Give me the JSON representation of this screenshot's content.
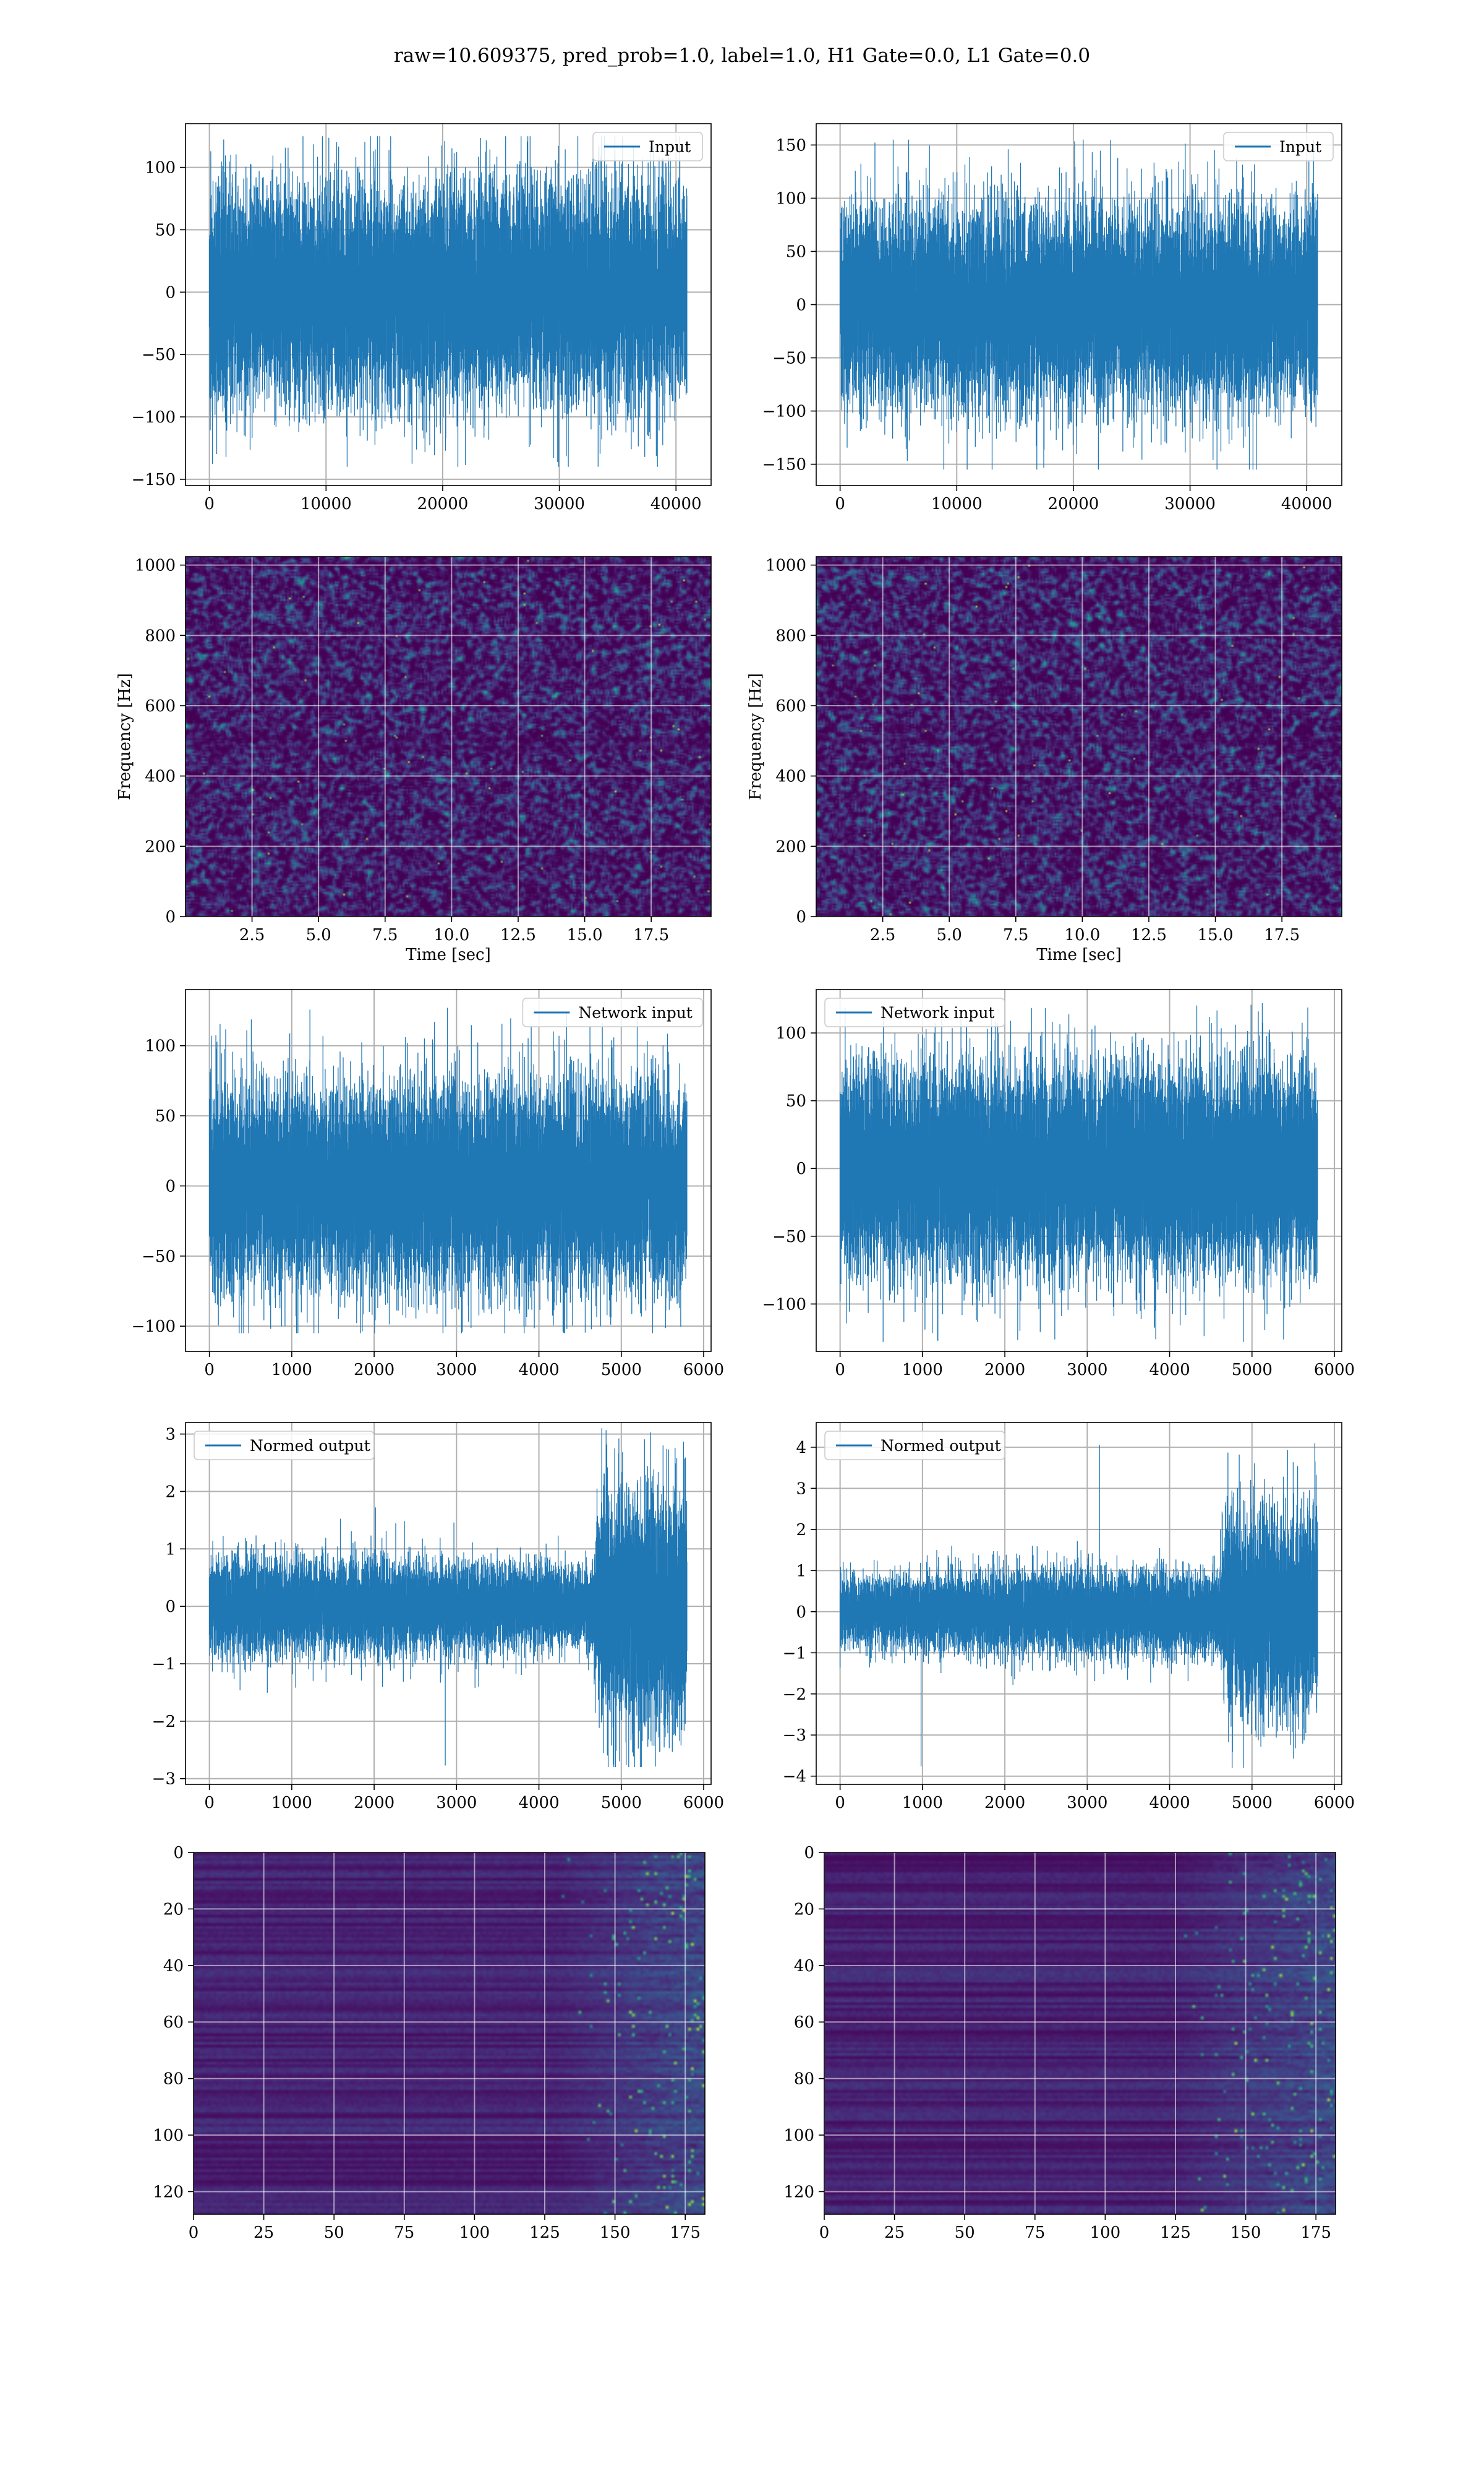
{
  "figure": {
    "suptitle": "raw=10.609375, pred_prob=1.0, label=1.0, H1 Gate=0.0, L1 Gate=0.0",
    "colors": {
      "line": "#1f77b4",
      "grid": "#b0b0b0",
      "spine": "#000000",
      "viridis_low": "#440154",
      "viridis_high": "#fde725"
    }
  },
  "chart_data": [
    {
      "id": "input-left",
      "type": "line",
      "row": 0,
      "col": 0,
      "title": "",
      "xlabel": "",
      "ylabel": "",
      "legend": [
        "Input"
      ],
      "legend_loc": "upper right",
      "xlim": [
        -2048,
        43008
      ],
      "ylim": [
        -155,
        135
      ],
      "xticks": [
        0,
        10000,
        20000,
        30000,
        40000
      ],
      "xtick_labels": [
        "0",
        "10000",
        "20000",
        "30000",
        "40000"
      ],
      "yticks": [
        -150,
        -100,
        -50,
        0,
        50,
        100
      ],
      "ytick_labels": [
        "−150",
        "−100",
        "−50",
        "0",
        "50",
        "100"
      ],
      "grid": true,
      "signal": {
        "n": 40960,
        "envelope": [
          {
            "x": 0,
            "amp": 42
          },
          {
            "x": 40960,
            "amp": 42
          }
        ],
        "max": 125,
        "min": -140
      }
    },
    {
      "id": "input-right",
      "type": "line",
      "row": 0,
      "col": 1,
      "title": "",
      "xlabel": "",
      "ylabel": "",
      "legend": [
        "Input"
      ],
      "legend_loc": "upper right",
      "xlim": [
        -2048,
        43008
      ],
      "ylim": [
        -170,
        170
      ],
      "xticks": [
        0,
        10000,
        20000,
        30000,
        40000
      ],
      "xtick_labels": [
        "0",
        "10000",
        "20000",
        "30000",
        "40000"
      ],
      "yticks": [
        -150,
        -100,
        -50,
        0,
        50,
        100,
        150
      ],
      "ytick_labels": [
        "−150",
        "−100",
        "−50",
        "0",
        "50",
        "100",
        "150"
      ],
      "grid": true,
      "signal": {
        "n": 40960,
        "envelope": [
          {
            "x": 0,
            "amp": 45
          },
          {
            "x": 40960,
            "amp": 45
          }
        ],
        "max": 155,
        "min": -155
      }
    },
    {
      "id": "spectrogram-left",
      "type": "heatmap",
      "row": 1,
      "col": 0,
      "title": "",
      "xlabel": "Time [sec]",
      "ylabel": "Frequency [Hz]",
      "xlim": [
        0,
        19.75
      ],
      "ylim": [
        0,
        1024
      ],
      "xticks": [
        2.5,
        5.0,
        7.5,
        10.0,
        12.5,
        15.0,
        17.5
      ],
      "xtick_labels": [
        "2.5",
        "5.0",
        "7.5",
        "10.0",
        "12.5",
        "15.0",
        "17.5"
      ],
      "yticks": [
        0,
        200,
        400,
        600,
        800,
        1000
      ],
      "ytick_labels": [
        "0",
        "200",
        "400",
        "600",
        "800",
        "1000"
      ],
      "grid": true,
      "colormap": "viridis",
      "dark_bands_hz": [
        0,
        480,
        505,
        1000
      ],
      "texture": "speckled-noise"
    },
    {
      "id": "spectrogram-right",
      "type": "heatmap",
      "row": 1,
      "col": 1,
      "title": "",
      "xlabel": "Time [sec]",
      "ylabel": "Frequency [Hz]",
      "xlim": [
        0,
        19.75
      ],
      "ylim": [
        0,
        1024
      ],
      "xticks": [
        2.5,
        5.0,
        7.5,
        10.0,
        12.5,
        15.0,
        17.5
      ],
      "xtick_labels": [
        "2.5",
        "5.0",
        "7.5",
        "10.0",
        "12.5",
        "15.0",
        "17.5"
      ],
      "yticks": [
        0,
        200,
        400,
        600,
        800,
        1000
      ],
      "ytick_labels": [
        "0",
        "200",
        "400",
        "600",
        "800",
        "1000"
      ],
      "grid": true,
      "colormap": "viridis",
      "dark_bands_hz": [
        0,
        500,
        1000
      ],
      "texture": "speckled-noise"
    },
    {
      "id": "network-input-left",
      "type": "line",
      "row": 2,
      "col": 0,
      "title": "",
      "xlabel": "",
      "ylabel": "",
      "legend": [
        "Network input"
      ],
      "legend_loc": "upper right",
      "xlim": [
        -290,
        6090
      ],
      "ylim": [
        -118,
        140
      ],
      "xticks": [
        0,
        1000,
        2000,
        3000,
        4000,
        5000,
        6000
      ],
      "xtick_labels": [
        "0",
        "1000",
        "2000",
        "3000",
        "4000",
        "5000",
        "6000"
      ],
      "yticks": [
        -100,
        -50,
        0,
        50,
        100
      ],
      "ytick_labels": [
        "−100",
        "−50",
        "0",
        "50",
        "100"
      ],
      "grid": true,
      "signal": {
        "n": 5800,
        "envelope": [
          {
            "x": 0,
            "amp": 35
          },
          {
            "x": 5800,
            "amp": 35
          }
        ],
        "max": 127,
        "min": -105
      }
    },
    {
      "id": "network-input-right",
      "type": "line",
      "row": 2,
      "col": 1,
      "title": "",
      "xlabel": "",
      "ylabel": "",
      "legend": [
        "Network input"
      ],
      "legend_loc": "upper left",
      "xlim": [
        -290,
        6090
      ],
      "ylim": [
        -135,
        132
      ],
      "xticks": [
        0,
        1000,
        2000,
        3000,
        4000,
        5000,
        6000
      ],
      "xtick_labels": [
        "0",
        "1000",
        "2000",
        "3000",
        "4000",
        "5000",
        "6000"
      ],
      "yticks": [
        -100,
        -50,
        0,
        50,
        100
      ],
      "ytick_labels": [
        "−100",
        "−50",
        "0",
        "50",
        "100"
      ],
      "grid": true,
      "signal": {
        "n": 5800,
        "envelope": [
          {
            "x": 0,
            "amp": 37
          },
          {
            "x": 5800,
            "amp": 37
          }
        ],
        "max": 122,
        "min": -128
      }
    },
    {
      "id": "normed-output-left",
      "type": "line",
      "row": 3,
      "col": 0,
      "title": "",
      "xlabel": "",
      "ylabel": "",
      "legend": [
        "Normed output"
      ],
      "legend_loc": "upper left",
      "xlim": [
        -290,
        6090
      ],
      "ylim": [
        -3.1,
        3.2
      ],
      "xticks": [
        0,
        1000,
        2000,
        3000,
        4000,
        5000,
        6000
      ],
      "xtick_labels": [
        "0",
        "1000",
        "2000",
        "3000",
        "4000",
        "5000",
        "6000"
      ],
      "yticks": [
        -3,
        -2,
        -1,
        0,
        1,
        2,
        3
      ],
      "ytick_labels": [
        "−3",
        "−2",
        "−1",
        "0",
        "1",
        "2",
        "3"
      ],
      "grid": true,
      "signal": {
        "n": 5800,
        "envelope": [
          {
            "x": 0,
            "amp": 0.42
          },
          {
            "x": 2500,
            "amp": 0.4
          },
          {
            "x": 4650,
            "amp": 0.35
          },
          {
            "x": 4750,
            "amp": 1.0
          },
          {
            "x": 5800,
            "amp": 1.0
          }
        ],
        "max": 3.1,
        "min": -2.8
      }
    },
    {
      "id": "normed-output-right",
      "type": "line",
      "row": 3,
      "col": 1,
      "title": "",
      "xlabel": "",
      "ylabel": "",
      "legend": [
        "Normed output"
      ],
      "legend_loc": "upper left",
      "xlim": [
        -290,
        6090
      ],
      "ylim": [
        -4.2,
        4.6
      ],
      "xticks": [
        0,
        1000,
        2000,
        3000,
        4000,
        5000,
        6000
      ],
      "xtick_labels": [
        "0",
        "1000",
        "2000",
        "3000",
        "4000",
        "5000",
        "6000"
      ],
      "yticks": [
        -4,
        -3,
        -2,
        -1,
        0,
        1,
        2,
        3,
        4
      ],
      "ytick_labels": [
        "−4",
        "−3",
        "−2",
        "−1",
        "0",
        "1",
        "2",
        "3",
        "4"
      ],
      "grid": true,
      "signal": {
        "n": 5800,
        "envelope": [
          {
            "x": 0,
            "amp": 0.4
          },
          {
            "x": 2000,
            "amp": 0.5
          },
          {
            "x": 4600,
            "amp": 0.5
          },
          {
            "x": 4700,
            "amp": 1.2
          },
          {
            "x": 5800,
            "amp": 1.2
          }
        ],
        "max": 4.1,
        "min": -3.8
      }
    },
    {
      "id": "feature-map-left",
      "type": "heatmap",
      "row": 4,
      "col": 0,
      "title": "",
      "xlabel": "",
      "ylabel": "",
      "xlim": [
        0,
        182
      ],
      "ylim": [
        128,
        0
      ],
      "xticks": [
        0,
        25,
        50,
        75,
        100,
        125,
        150,
        175
      ],
      "xtick_labels": [
        "0",
        "25",
        "50",
        "75",
        "100",
        "125",
        "150",
        "175"
      ],
      "yticks": [
        0,
        20,
        40,
        60,
        80,
        100,
        120
      ],
      "ytick_labels": [
        "0",
        "20",
        "40",
        "60",
        "80",
        "100",
        "120"
      ],
      "grid": true,
      "colormap": "viridis",
      "texture": "horizontal-streaks",
      "activity_onset": 128
    },
    {
      "id": "feature-map-right",
      "type": "heatmap",
      "row": 4,
      "col": 1,
      "title": "",
      "xlabel": "",
      "ylabel": "",
      "xlim": [
        0,
        182
      ],
      "ylim": [
        128,
        0
      ],
      "xticks": [
        0,
        25,
        50,
        75,
        100,
        125,
        150,
        175
      ],
      "xtick_labels": [
        "0",
        "25",
        "50",
        "75",
        "100",
        "125",
        "150",
        "175"
      ],
      "yticks": [
        0,
        20,
        40,
        60,
        80,
        100,
        120
      ],
      "ytick_labels": [
        "0",
        "20",
        "40",
        "60",
        "80",
        "100",
        "120"
      ],
      "grid": true,
      "colormap": "viridis",
      "texture": "horizontal-streaks",
      "activity_onset": 122
    }
  ]
}
